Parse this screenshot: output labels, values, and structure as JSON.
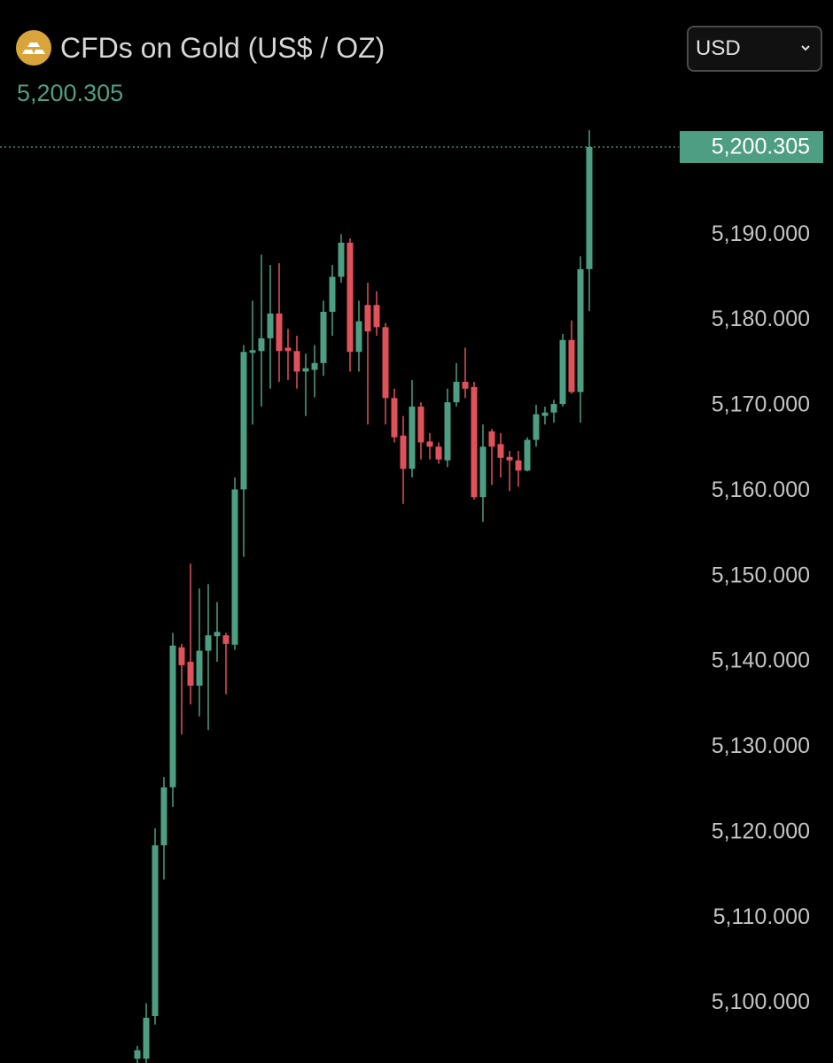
{
  "chart_data": {
    "type": "candlestick",
    "title": "CFDs on Gold (US$ / OZ)",
    "currency": "USD",
    "last_price": {
      "value": 5200.305,
      "label": "5,200.305"
    },
    "up_color": "#4e9e84",
    "down_color": "#e0525a",
    "ylim": [
      5093,
      5203
    ],
    "yticks": [
      {
        "value": 5100,
        "label": "5,100.000"
      },
      {
        "value": 5110,
        "label": "5,110.000"
      },
      {
        "value": 5120,
        "label": "5,120.000"
      },
      {
        "value": 5130,
        "label": "5,130.000"
      },
      {
        "value": 5140,
        "label": "5,140.000"
      },
      {
        "value": 5150,
        "label": "5,150.000"
      },
      {
        "value": 5160,
        "label": "5,160.000"
      },
      {
        "value": 5170,
        "label": "5,170.000"
      },
      {
        "value": 5180,
        "label": "5,180.000"
      },
      {
        "value": 5190,
        "label": "5,190.000"
      }
    ],
    "open": [
      5093.5,
      5093.5,
      5098.5,
      5118.5,
      5125.3,
      5141.7,
      5140,
      5137.2,
      5141.3,
      5143,
      5143.1,
      5142,
      5160.2,
      5176.2,
      5176.4,
      5177.9,
      5180.8,
      5176.8,
      5176.4,
      5174,
      5174.2,
      5175,
      5181,
      5185.1,
      5189.1,
      5176.3,
      5181.8,
      5181.8,
      5179.2,
      5170.9,
      5166.5,
      5162.6,
      5169.9,
      5165.8,
      5165.2,
      5163.6,
      5170.4,
      5172.8,
      5172.2,
      5159.3,
      5167,
      5165.5,
      5164,
      5163.6,
      5162.4,
      5166,
      5168.8,
      5169.2,
      5170.2,
      5177.7,
      5171.6,
      5186
    ],
    "high": [
      5095,
      5100,
      5120.5,
      5126.5,
      5143.4,
      5142.1,
      5151.5,
      5148.6,
      5149.1,
      5147,
      5143.4,
      5161.6,
      5177.1,
      5182.3,
      5187.7,
      5186.5,
      5186.7,
      5179,
      5178.2,
      5176.1,
      5177.1,
      5182.3,
      5186.5,
      5190.1,
      5189.6,
      5182.3,
      5184.4,
      5183.4,
      5179.7,
      5172,
      5168.8,
      5173,
      5170.4,
      5166.8,
      5165.7,
      5172,
      5175,
      5176.8,
      5172.8,
      5167.8,
      5167.3,
      5166.8,
      5164.7,
      5164.7,
      5166.3,
      5170.1,
      5169.9,
      5170.7,
      5178.4,
      5180,
      5187.5,
      5202.3
    ],
    "low": [
      5093,
      5093,
      5097.5,
      5114.5,
      5123,
      5131.5,
      5135,
      5133.6,
      5132,
      5140,
      5136.2,
      5141.4,
      5152.3,
      5167.8,
      5169.9,
      5172,
      5172.8,
      5173,
      5172,
      5168.8,
      5171,
      5173.5,
      5178.2,
      5184.4,
      5174,
      5174,
      5167.8,
      5178.2,
      5167.8,
      5165.7,
      5158.5,
      5161.6,
      5163.7,
      5163.7,
      5163.2,
      5162.8,
      5169.9,
      5170.9,
      5159,
      5156.4,
      5160.7,
      5161.6,
      5160,
      5160.5,
      5162.3,
      5165.2,
      5167.8,
      5168,
      5169.9,
      5171.4,
      5168,
      5181.1
    ],
    "close": [
      5094.5,
      5098.3,
      5118.5,
      5125.3,
      5141.9,
      5139.6,
      5137.2,
      5141.3,
      5143.1,
      5143.5,
      5142.1,
      5160.2,
      5176.3,
      5176.5,
      5177.9,
      5180.8,
      5176.4,
      5176.4,
      5174,
      5174.4,
      5175,
      5181,
      5185.1,
      5189.1,
      5176.3,
      5179.9,
      5178.7,
      5179.2,
      5170.9,
      5166.3,
      5162.6,
      5169.9,
      5165.7,
      5165.2,
      5163.7,
      5170.4,
      5172.8,
      5172,
      5159.3,
      5165.2,
      5165.2,
      5163.9,
      5163.6,
      5162.4,
      5166,
      5169,
      5169.2,
      5170.2,
      5177.7,
      5171.6,
      5186,
      5200.305
    ]
  }
}
